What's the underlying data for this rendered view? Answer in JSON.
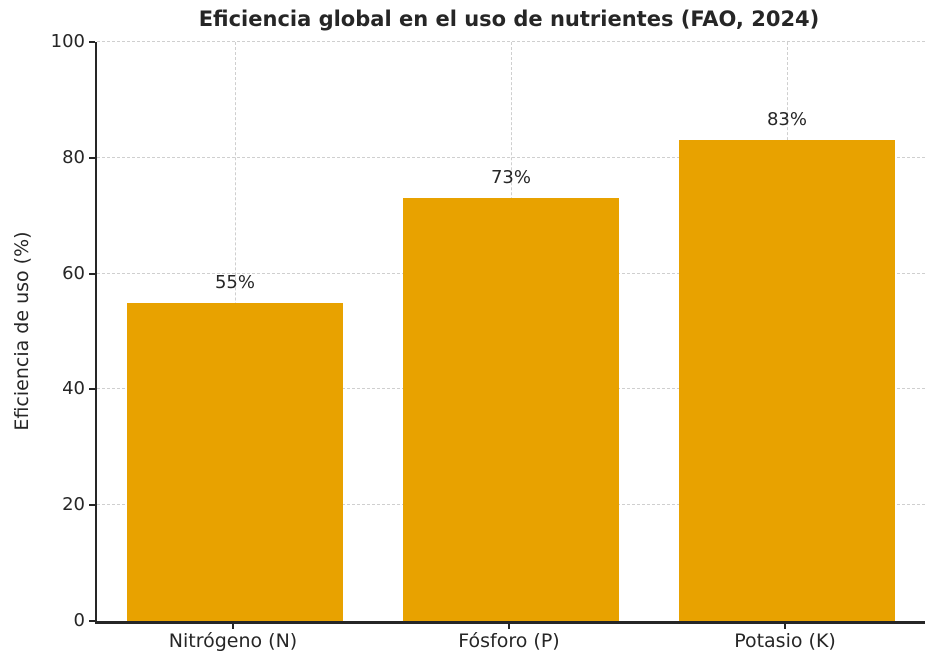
{
  "chart_data": {
    "type": "bar",
    "title": "Eficiencia global en el uso de nutrientes (FAO, 2024)",
    "xlabel": "",
    "ylabel": "Eficiencia de uso (%)",
    "categories": [
      "Nitrógeno (N)",
      "Fósforo (P)",
      "Potasio (K)"
    ],
    "values": [
      55,
      73,
      83
    ],
    "value_labels": [
      "55%",
      "73%",
      "83%"
    ],
    "ylim": [
      0,
      100
    ],
    "yticks": [
      0,
      20,
      40,
      60,
      80,
      100
    ],
    "legend_position": "none",
    "grid": "dashed horizontal and vertical gridlines",
    "colors": {
      "bar": "#E8A200",
      "grid": "#cfcfcf",
      "text": "#262626",
      "axis": "#262626",
      "background": "#ffffff"
    }
  }
}
